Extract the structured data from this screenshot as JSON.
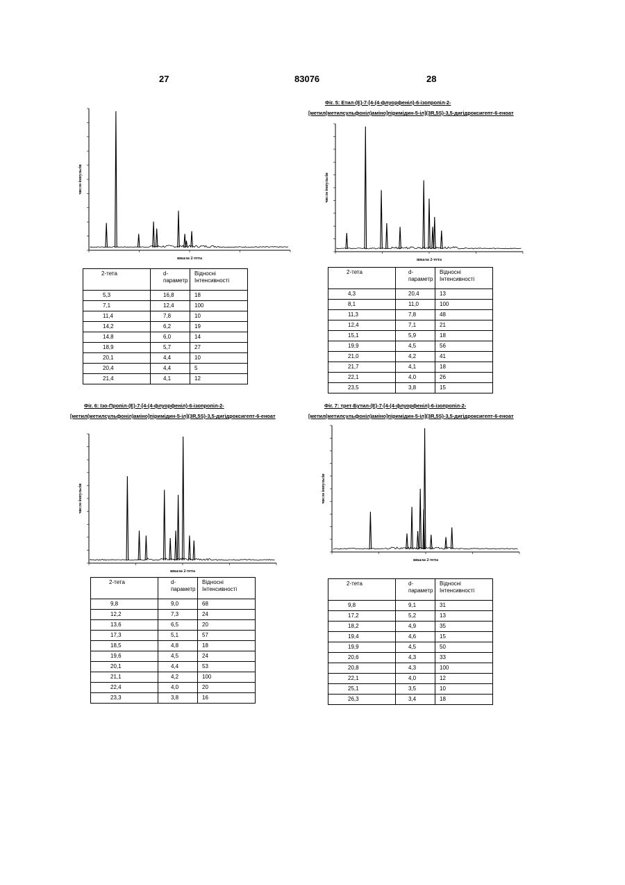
{
  "page": {
    "left_number": "27",
    "center_number": "83076",
    "right_number": "28"
  },
  "figures": [
    {
      "caption_line1": "",
      "caption_line2": "",
      "ylabel": "число імпульсів",
      "xlabel": "шкала 2-тета",
      "table": {
        "headers": [
          "2-тета",
          "d-\nпараметр",
          "Відносні\nІнтенсивності"
        ],
        "rows": [
          [
            "5,3",
            "16,8",
            "18"
          ],
          [
            "7,1",
            "12,4",
            "100"
          ],
          [
            "11,4",
            "7,8",
            "10"
          ],
          [
            "14,2",
            "6,2",
            "19"
          ],
          [
            "14,8",
            "6,0",
            "14"
          ],
          [
            "18,9",
            "5,7",
            "27"
          ],
          [
            "20,1",
            "4,4",
            "10"
          ],
          [
            "20,4",
            "4,4",
            "5"
          ],
          [
            "21,4",
            "4,1",
            "12"
          ]
        ]
      }
    },
    {
      "caption_line1": "Фіг. 5:    Етил-(E)-7-[4-(4-флуорфеніл)-6-ізопропіл-2-",
      "caption_line2": "[метил(метилсульфоніл)аміно]піримідин-5-іл](3R,5S)-3,5-дигідроксигепт-6-еноат",
      "ylabel": "число імпульсів",
      "xlabel": "шкала 2-тета",
      "table": {
        "headers": [
          "2-тета",
          "d-\nпараметр",
          "Відносні\nІнтенсивності"
        ],
        "rows": [
          [
            "4,3",
            "20,4",
            "13"
          ],
          [
            "8,1",
            "11,0",
            "100"
          ],
          [
            "11,3",
            "7,8",
            "48"
          ],
          [
            "12,4",
            "7,1",
            "21"
          ],
          [
            "15,1",
            "5,9",
            "18"
          ],
          [
            "19,9",
            "4,5",
            "56"
          ],
          [
            "21,0",
            "4,2",
            "41"
          ],
          [
            "21,7",
            "4,1",
            "18"
          ],
          [
            "22,1",
            "4,0",
            "26"
          ],
          [
            "23,5",
            "3,8",
            "15"
          ]
        ]
      }
    },
    {
      "caption_line1": "Фіг. 6:    Ізо-Пропіл-(E)-7-[4-(4-флуорфеніл)-6-ізопропіл-2-",
      "caption_line2": "[метил(метилсульфоніл)аміно]піримідин-5-іл](3R,5S)-3,5-дигідроксигепт-6-еноат",
      "ylabel": "число імпульсів",
      "xlabel": "шкала 2-тета",
      "table": {
        "headers": [
          "2-тета",
          "d-\nпараметр",
          "Відносні\nІнтенсивності"
        ],
        "rows": [
          [
            "9,8",
            "9,0",
            "68"
          ],
          [
            "12,2",
            "7,3",
            "24"
          ],
          [
            "13,6",
            "6,5",
            "20"
          ],
          [
            "17,3",
            "5,1",
            "57"
          ],
          [
            "18,5",
            "4,8",
            "18"
          ],
          [
            "19,6",
            "4,5",
            "24"
          ],
          [
            "20,1",
            "4,4",
            "53"
          ],
          [
            "21,1",
            "4,2",
            "100"
          ],
          [
            "22,4",
            "4,0",
            "20"
          ],
          [
            "23,3",
            "3,8",
            "16"
          ]
        ]
      }
    },
    {
      "caption_line1": "Фіг. 7:    трет-Бутил-(E)-7-[4-(4-флуорфеніл)-6-ізопропіл-2-",
      "caption_line2": "[метил(метилсульфоніл)аміно]піримідин-5-іл](3R,5S)-3,5-дигідроксигепт-6-еноат",
      "ylabel": "число імпульсів",
      "xlabel": "шкала 2-тета",
      "table": {
        "headers": [
          "2-тета",
          "d-\nпараметр",
          "Відносні\nІнтенсивності"
        ],
        "rows": [
          [
            "9,8",
            "9,1",
            "31"
          ],
          [
            "17,2",
            "5,2",
            "13"
          ],
          [
            "18,2",
            "4,9",
            "35"
          ],
          [
            "19,4",
            "4,6",
            "15"
          ],
          [
            "19,9",
            "4,5",
            "50"
          ],
          [
            "20,6",
            "4,3",
            "33"
          ],
          [
            "20,8",
            "4,3",
            "100"
          ],
          [
            "22,1",
            "4,0",
            "12"
          ],
          [
            "25,1",
            "3,5",
            "10"
          ],
          [
            "26,3",
            "3,4",
            "18"
          ]
        ]
      }
    }
  ],
  "chart_data": [
    {
      "type": "line",
      "xlabel": "шкала 2-тета",
      "ylabel": "число імпульсів",
      "x": [
        5.3,
        7.1,
        11.4,
        14.2,
        14.8,
        18.9,
        20.1,
        20.4,
        21.4
      ],
      "y": [
        18,
        100,
        10,
        19,
        14,
        27,
        10,
        5,
        12
      ]
    },
    {
      "type": "line",
      "xlabel": "шкала 2-тета",
      "ylabel": "число імпульсів",
      "x": [
        4.3,
        8.1,
        11.3,
        12.4,
        15.1,
        19.9,
        21.0,
        21.7,
        22.1,
        23.5
      ],
      "y": [
        13,
        100,
        48,
        21,
        18,
        56,
        41,
        18,
        26,
        15
      ]
    },
    {
      "type": "line",
      "xlabel": "шкала 2-тета",
      "ylabel": "число імпульсів",
      "x": [
        9.8,
        12.2,
        13.6,
        17.3,
        18.5,
        19.6,
        20.1,
        21.1,
        22.4,
        23.3
      ],
      "y": [
        68,
        24,
        20,
        57,
        18,
        24,
        53,
        100,
        20,
        16
      ]
    },
    {
      "type": "line",
      "xlabel": "шкала 2-тета",
      "ylabel": "число імпульсів",
      "x": [
        9.8,
        17.2,
        18.2,
        19.4,
        19.9,
        20.6,
        20.8,
        22.1,
        25.1,
        26.3
      ],
      "y": [
        31,
        13,
        35,
        15,
        50,
        33,
        100,
        12,
        10,
        18
      ]
    }
  ]
}
